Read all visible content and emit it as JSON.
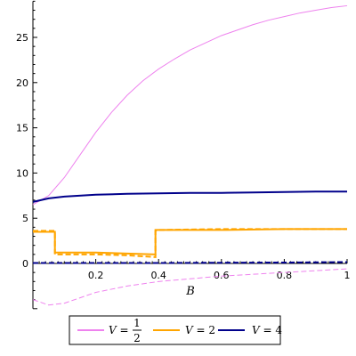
{
  "chart_data": {
    "type": "line",
    "xlabel": "B",
    "ylabel": "",
    "xlim": [
      0,
      1
    ],
    "ylim": [
      -5,
      29
    ],
    "x_ticks": [
      "0.2",
      "0.4",
      "0.6",
      "0.8",
      "1"
    ],
    "y_ticks": [
      "0",
      "5",
      "10",
      "15",
      "20",
      "25"
    ],
    "grid": false,
    "legend_position": "bottom",
    "series": [
      {
        "name": "V = 1/2",
        "legend": {
          "var": "V",
          "eq": "=",
          "num": "1",
          "den": "2"
        },
        "color": "#ee82ee",
        "style": "solid",
        "x": [
          0,
          0.05,
          0.1,
          0.15,
          0.2,
          0.25,
          0.3,
          0.35,
          0.4,
          0.45,
          0.5,
          0.55,
          0.6,
          0.65,
          0.7,
          0.75,
          0.8,
          0.85,
          0.9,
          0.95,
          1
        ],
        "y": [
          6.5,
          7.5,
          9.5,
          12.0,
          14.5,
          16.7,
          18.6,
          20.2,
          21.5,
          22.6,
          23.6,
          24.4,
          25.2,
          25.8,
          26.4,
          26.9,
          27.3,
          27.7,
          28.0,
          28.3,
          28.5
        ]
      },
      {
        "name": "V = 1/2 (dash)",
        "color": "#ee82ee",
        "style": "dash",
        "x": [
          0,
          0.05,
          0.1,
          0.15,
          0.2,
          0.3,
          0.4,
          0.5,
          0.6,
          0.7,
          0.8,
          0.9,
          1
        ],
        "y": [
          -4.0,
          -4.6,
          -4.4,
          -3.8,
          -3.2,
          -2.5,
          -2.0,
          -1.7,
          -1.4,
          -1.2,
          -1.0,
          -0.8,
          -0.6
        ]
      },
      {
        "name": "V = 2",
        "legend": {
          "var": "V",
          "eq": "= 2"
        },
        "color": "#ffa500",
        "style": "solid",
        "x": [
          0,
          0.07,
          0.07,
          0.1,
          0.2,
          0.3,
          0.39,
          0.39,
          0.4,
          0.6,
          0.8,
          1
        ],
        "y": [
          3.5,
          3.5,
          1.2,
          1.2,
          1.2,
          1.1,
          1.0,
          3.7,
          3.7,
          3.7,
          3.8,
          3.8
        ]
      },
      {
        "name": "V = 2 (dash)",
        "color": "#ffa500",
        "style": "dash",
        "x": [
          0,
          0.07,
          0.07,
          0.1,
          0.2,
          0.3,
          0.39,
          0.39,
          0.4,
          0.6,
          0.8,
          1
        ],
        "y": [
          3.6,
          3.6,
          1.0,
          1.0,
          1.0,
          0.9,
          0.7,
          3.6,
          3.7,
          3.8,
          3.8,
          3.8
        ]
      },
      {
        "name": "V = 4",
        "legend": {
          "var": "V",
          "eq": "= 4"
        },
        "color": "#00008b",
        "style": "solid",
        "x": [
          0,
          0.05,
          0.1,
          0.2,
          0.3,
          0.4,
          0.5,
          0.6,
          0.7,
          0.8,
          0.9,
          1
        ],
        "y": [
          6.8,
          7.2,
          7.4,
          7.6,
          7.7,
          7.75,
          7.8,
          7.8,
          7.85,
          7.9,
          7.95,
          7.95
        ]
      },
      {
        "name": "V = 4 (dash)",
        "color": "#00008b",
        "style": "dash",
        "x": [
          0,
          0.2,
          0.4,
          0.6,
          0.8,
          1
        ],
        "y": [
          0.05,
          0.05,
          0.05,
          0.08,
          0.1,
          0.15
        ]
      }
    ]
  }
}
